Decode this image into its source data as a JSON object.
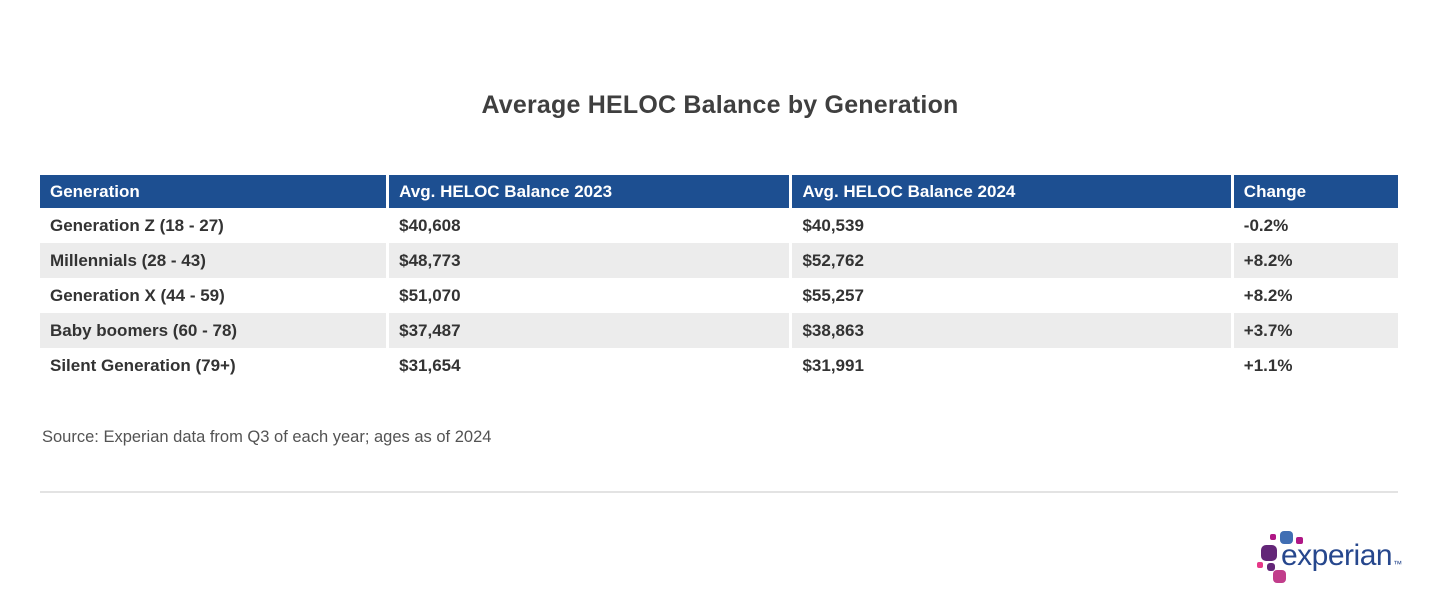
{
  "page": {
    "title": "Average HELOC Balance by Generation",
    "source_note": "Source: Experian data from Q3 of each year; ages as of 2024"
  },
  "table": {
    "columns": [
      "Generation",
      "Avg. HELOC Balance 2023",
      "Avg. HELOC Balance 2024",
      "Change"
    ],
    "rows": [
      {
        "generation": "Generation Z (18 - 27)",
        "balance_2023": "$40,608",
        "balance_2024": "$40,539",
        "change": "-0.2%"
      },
      {
        "generation": "Millennials (28 - 43)",
        "balance_2023": "$48,773",
        "balance_2024": "$52,762",
        "change": "+8.2%"
      },
      {
        "generation": "Generation X (44 - 59)",
        "balance_2023": "$51,070",
        "balance_2024": "$55,257",
        "change": "+8.2%"
      },
      {
        "generation": "Baby boomers (60 - 78)",
        "balance_2023": "$37,487",
        "balance_2024": "$38,863",
        "change": "+3.7%"
      },
      {
        "generation": "Silent Generation (79+)",
        "balance_2023": "$31,654",
        "balance_2024": "$31,991",
        "change": "+1.1%"
      }
    ]
  },
  "chart_data": {
    "type": "table",
    "title": "Average HELOC Balance by Generation",
    "columns": [
      "Generation",
      "Avg. HELOC Balance 2023",
      "Avg. HELOC Balance 2024",
      "Change"
    ],
    "categories": [
      "Generation Z (18 - 27)",
      "Millennials (28 - 43)",
      "Generation X (44 - 59)",
      "Baby boomers (60 - 78)",
      "Silent Generation (79+)"
    ],
    "series": [
      {
        "name": "Avg. HELOC Balance 2023",
        "values": [
          40608,
          48773,
          51070,
          37487,
          31654
        ]
      },
      {
        "name": "Avg. HELOC Balance 2024",
        "values": [
          40539,
          52762,
          55257,
          38863,
          31991
        ]
      },
      {
        "name": "Change",
        "values": [
          "-0.2%",
          "+8.2%",
          "+8.2%",
          "+3.7%",
          "+1.1%"
        ]
      }
    ],
    "source": "Source: Experian data from Q3 of each year; ages as of 2024",
    "layout": {
      "header_background": "#1d4f91",
      "alternate_row_background": "#ececec",
      "striped": true
    }
  },
  "logo": {
    "wordmark": "experian",
    "trademark": "™"
  },
  "colors": {
    "header_blue": "#1d4f91",
    "row_gray": "#ececec",
    "cell_text": "#333333",
    "title_text": "#3f3f3f",
    "source_text": "#535353",
    "divider": "#e3e3e3",
    "logo_dark_blue": "#26478d",
    "logo_light_blue": "#406eb3",
    "logo_purple": "#632678",
    "logo_magenta": "#af1685",
    "logo_pink": "#e63888"
  }
}
